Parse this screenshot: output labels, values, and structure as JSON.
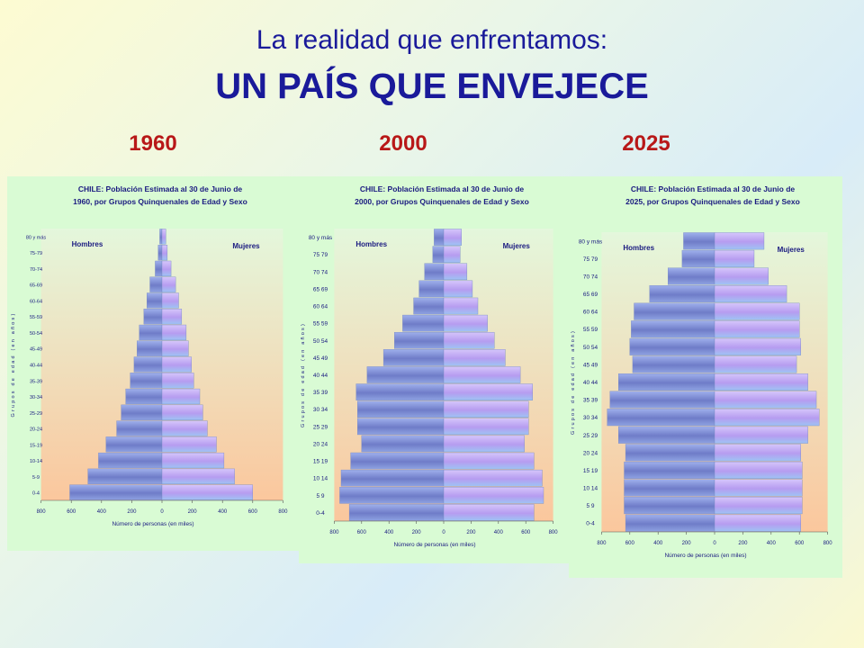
{
  "slide": {
    "title_line1": "La realidad que enfrentamos:",
    "title_line2": "UN PAÍS QUE ENVEJECE",
    "years": [
      "1960",
      "2000",
      "2025"
    ]
  },
  "colors": {
    "title": "#1a1a9a",
    "year": "#b81818",
    "panel_bg": "#d9fbd4",
    "male_bar": "#6f7cc8",
    "female_bar": "#b69cf0",
    "chart_text": "#1a1a80"
  },
  "chart_data": [
    {
      "type": "bar",
      "orientation": "horizontal",
      "subtype": "population-pyramid",
      "title": "CHILE: Población Estimada al 30 de Junio de 1960, por Grupos Quinquenales de Edad y Sexo",
      "title_lines": [
        "CHILE: Población Estimada al 30 de Junio de",
        "1960, por Grupos Quinquenales de Edad y Sexo"
      ],
      "categories": [
        "0-4",
        "5-9",
        "10-14",
        "15-19",
        "20-24",
        "25-29",
        "30-34",
        "35-39",
        "40-44",
        "45-49",
        "50-54",
        "55-59",
        "60-64",
        "65-69",
        "70-74",
        "75-79",
        "80 y más"
      ],
      "series": [
        {
          "name": "Hombres",
          "values": [
            610,
            490,
            420,
            370,
            300,
            270,
            240,
            210,
            185,
            165,
            150,
            120,
            100,
            80,
            45,
            25,
            15
          ]
        },
        {
          "name": "Mujeres",
          "values": [
            600,
            480,
            410,
            360,
            300,
            270,
            250,
            210,
            195,
            175,
            160,
            130,
            110,
            90,
            60,
            35,
            25
          ]
        }
      ],
      "xlabel": "Número de personas (en miles)",
      "ylabel": "Grupos de edad (en años)",
      "xticks": [
        "800",
        "600",
        "400",
        "200",
        "0",
        "200",
        "400",
        "600",
        "800"
      ],
      "xlim": [
        -800,
        800
      ]
    },
    {
      "type": "bar",
      "orientation": "horizontal",
      "subtype": "population-pyramid",
      "title": "CHILE: Población Estimada al 30 de Junio de 2000, por Grupos Quinquenales de Edad y Sexo",
      "title_lines": [
        "CHILE: Población Estimada al 30 de Junio de",
        "2000, por Grupos Quinquenales de Edad y Sexo"
      ],
      "categories": [
        "0-4",
        "5 9",
        "10 14",
        "15 19",
        "20 24",
        "25 29",
        "30 34",
        "35 39",
        "40 44",
        "45 49",
        "50 54",
        "55 59",
        "60 64",
        "65 69",
        "70 74",
        "75 79",
        "80 y más"
      ],
      "series": [
        {
          "name": "Hombres",
          "values": [
            690,
            760,
            750,
            680,
            600,
            630,
            630,
            640,
            560,
            440,
            360,
            300,
            220,
            180,
            140,
            80,
            70
          ]
        },
        {
          "name": "Mujeres",
          "values": [
            660,
            730,
            720,
            660,
            590,
            620,
            620,
            650,
            560,
            450,
            370,
            320,
            250,
            210,
            170,
            120,
            130
          ]
        }
      ],
      "xlabel": "Número de personas (en miles)",
      "ylabel": "Grupos de edad (en años)",
      "xticks": [
        "800",
        "600",
        "400",
        "200",
        "0",
        "200",
        "400",
        "600",
        "800"
      ],
      "xlim": [
        -800,
        800
      ]
    },
    {
      "type": "bar",
      "orientation": "horizontal",
      "subtype": "population-pyramid",
      "title": "CHILE: Población Estimada al 30 de Junio de 2025, por Grupos Quinquenales de Edad y Sexo",
      "title_lines": [
        "CHILE: Población Estimada al 30 de Junio de",
        "2025, por Grupos Quinquenales de Edad y Sexo"
      ],
      "categories": [
        "0-4",
        "5 9",
        "10 14",
        "15 19",
        "20 24",
        "25 29",
        "30 34",
        "35 39",
        "40 44",
        "45 49",
        "50 54",
        "55 59",
        "60 64",
        "65 69",
        "70 74",
        "75 79",
        "80 y más"
      ],
      "series": [
        {
          "name": "Hombres",
          "values": [
            630,
            640,
            640,
            640,
            630,
            680,
            760,
            740,
            680,
            580,
            600,
            590,
            570,
            460,
            330,
            230,
            220
          ]
        },
        {
          "name": "Mujeres",
          "values": [
            610,
            620,
            620,
            620,
            610,
            660,
            740,
            720,
            660,
            580,
            610,
            600,
            600,
            510,
            380,
            280,
            350
          ]
        }
      ],
      "xlabel": "Número de personas (en miles)",
      "ylabel": "Grupos de edad (en años)",
      "xticks": [
        "800",
        "600",
        "400",
        "200",
        "0",
        "200",
        "400",
        "600",
        "800"
      ],
      "xlim": [
        -800,
        800
      ]
    }
  ]
}
